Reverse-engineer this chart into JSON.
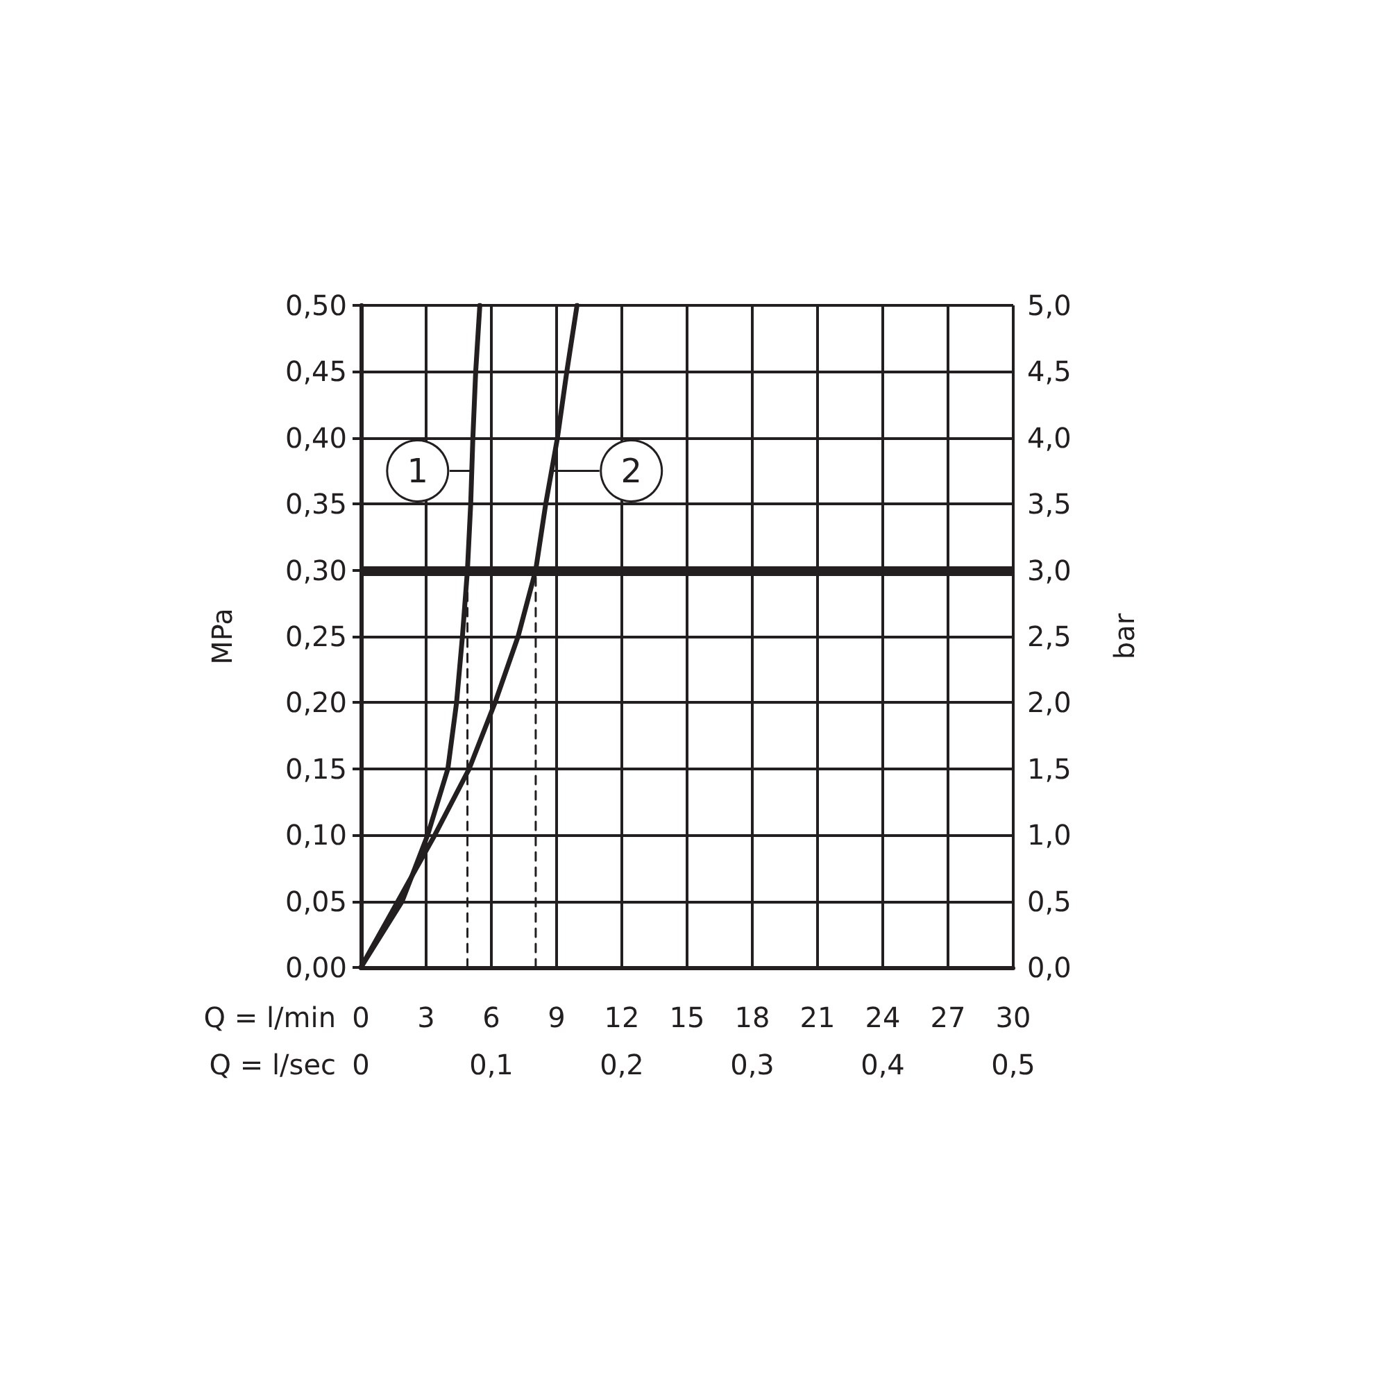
{
  "chart_data": {
    "type": "line",
    "xlabel": "Q = l/min",
    "x2label": "Q = l/sec",
    "ylabel": "MPa",
    "y2label": "bar",
    "xlim": [
      0,
      30
    ],
    "xticks": [
      0,
      3,
      6,
      9,
      12,
      15,
      18,
      21,
      24,
      27,
      30
    ],
    "x2lim": [
      0,
      0.5
    ],
    "x2ticks": [
      0,
      {
        "value": 0.1,
        "label": "0,1"
      },
      {
        "value": 0.2,
        "label": "0,2"
      },
      {
        "value": 0.3,
        "label": "0,3"
      },
      {
        "value": 0.4,
        "label": "0,4"
      },
      {
        "value": 0.5,
        "label": "0,5"
      }
    ],
    "ylim": [
      0,
      0.5
    ],
    "yticks": [
      {
        "value": 0,
        "label": "0,00"
      },
      {
        "value": 0.05,
        "label": "0,05"
      },
      {
        "value": 0.1,
        "label": "0,10"
      },
      {
        "value": 0.15,
        "label": "0,15"
      },
      {
        "value": 0.2,
        "label": "0,20"
      },
      {
        "value": 0.25,
        "label": "0,25"
      },
      {
        "value": 0.3,
        "label": "0,30"
      },
      {
        "value": 0.35,
        "label": "0,35"
      },
      {
        "value": 0.4,
        "label": "0,40"
      },
      {
        "value": 0.45,
        "label": "0,45"
      },
      {
        "value": 0.5,
        "label": "0,50"
      }
    ],
    "y2lim": [
      0,
      5
    ],
    "y2ticks": [
      {
        "value": 0,
        "label": "0,0"
      },
      {
        "value": 0.5,
        "label": "0,5"
      },
      {
        "value": 1,
        "label": "1,0"
      },
      {
        "value": 1.5,
        "label": "1,5"
      },
      {
        "value": 2,
        "label": "2,0"
      },
      {
        "value": 2.5,
        "label": "2,5"
      },
      {
        "value": 3,
        "label": "3,0"
      },
      {
        "value": 3.5,
        "label": "3,5"
      },
      {
        "value": 4,
        "label": "4,0"
      },
      {
        "value": 4.5,
        "label": "4,5"
      },
      {
        "value": 5,
        "label": "5,0"
      }
    ],
    "grid": true,
    "marker": "none",
    "line_style": "solid",
    "series": [
      {
        "color": "#231f20",
        "x": [
          0,
          1.9,
          3.07,
          4.0,
          4.4,
          4.67,
          4.9,
          5.05,
          5.15,
          5.28,
          5.47
        ],
        "values": [
          0,
          0.05,
          0.1,
          0.15,
          0.2,
          0.25,
          0.3,
          0.35,
          0.4,
          0.45,
          0.5
        ]
      },
      {
        "color": "#231f20",
        "x": [
          0,
          1.7,
          3.4,
          4.98,
          6.17,
          7.23,
          8.04,
          8.5,
          9.04,
          9.47,
          9.94
        ],
        "values": [
          0,
          0.05,
          0.1,
          0.15,
          0.2,
          0.25,
          0.3,
          0.35,
          0.4,
          0.45,
          0.5
        ]
      },
      {
        "color": "#231f20",
        "line_style": "dashed",
        "x": [
          4.9,
          4.9
        ],
        "values": [
          0,
          0.3
        ]
      },
      {
        "color": "#231f20",
        "line_style": "dashed",
        "x": [
          8.04,
          8.04
        ],
        "values": [
          0,
          0.3
        ]
      }
    ],
    "ref_lines": [
      {
        "axis": "y",
        "value": 0.3,
        "color": "#231f20"
      }
    ],
    "annotations": [
      {
        "text": "1",
        "x": 5.1,
        "y": 0.375
      },
      {
        "text": "2",
        "x": 8.8,
        "y": 0.375
      }
    ]
  }
}
